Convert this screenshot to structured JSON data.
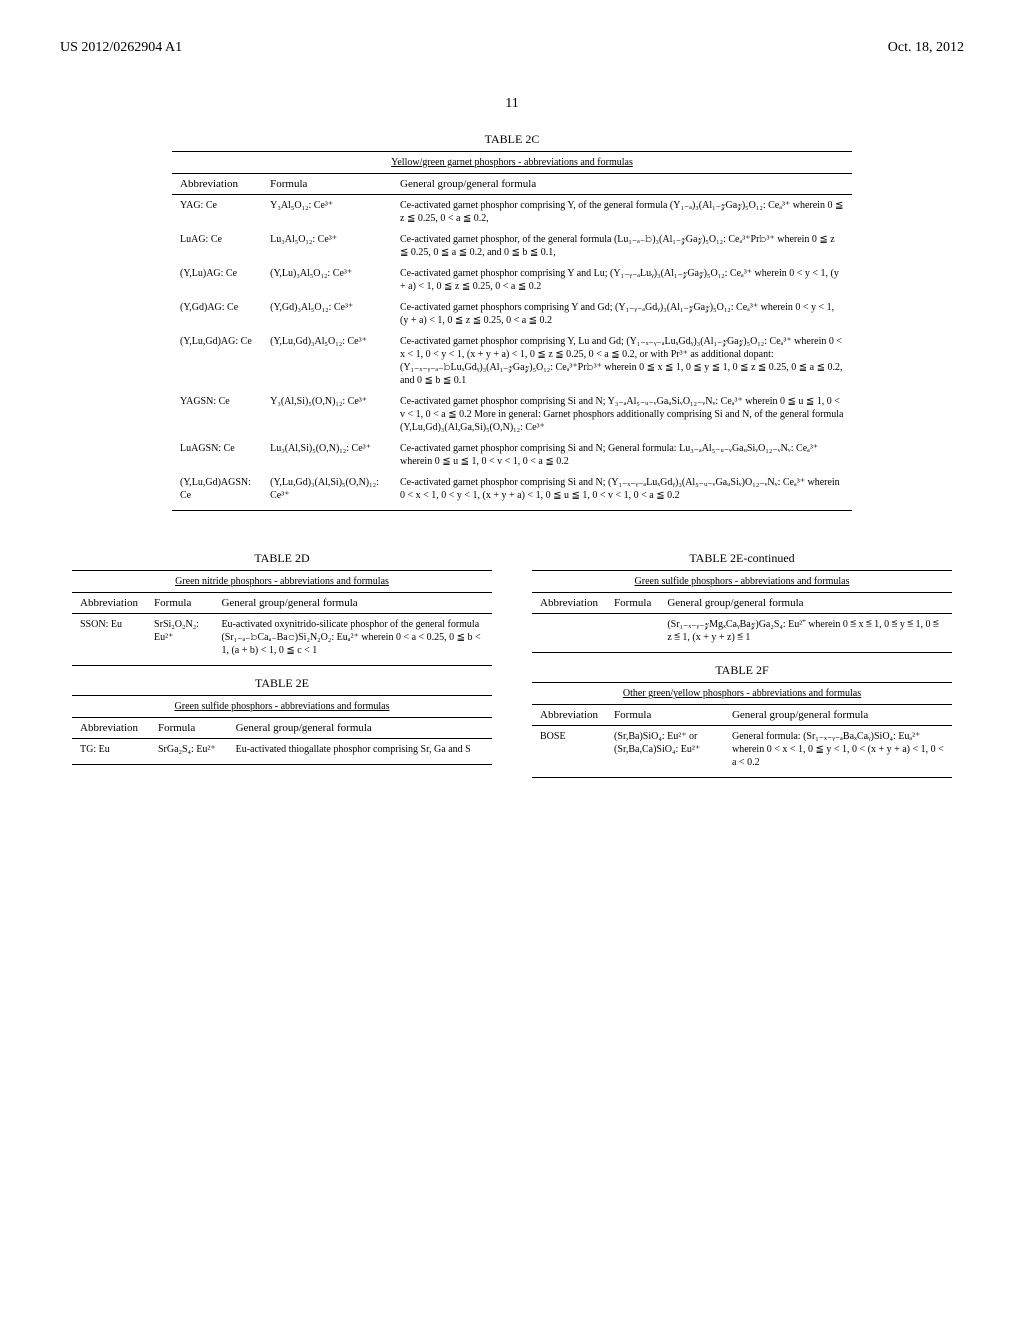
{
  "header": {
    "left": "US 2012/0262904 A1",
    "right": "Oct. 18, 2012"
  },
  "page_number": "11",
  "table2c": {
    "title": "TABLE 2C",
    "subtitle": "Yellow/green garnet phosphors - abbreviations and formulas",
    "cols": [
      "Abbreviation",
      "Formula",
      "General group/general formula"
    ],
    "rows": [
      {
        "abbr": "YAG: Ce",
        "formula": "Y₃Al₅O₁₂: Ce³⁺",
        "desc": "Ce-activated garnet phosphor comprising Y, of the general formula (Y₁₋ₐ)₃(Al₁₋𝓏Ga𝓏)₅O₁₂: Ceₐ³⁺ wherein 0 ≦ z ≦ 0.25, 0 < a ≦ 0.2,"
      },
      {
        "abbr": "LuAG: Ce",
        "formula": "Lu₃Al₅O₁₂: Ce³⁺",
        "desc": "Ce-activated garnet phosphor, of the general formula (Lu₁₋ₐ₋𝚋)₃(Al₁₋𝓏Ga𝓏)₅O₁₂: Ceₐ³⁺Pr𝚋³⁺ wherein 0 ≦ z ≦ 0.25, 0 ≦ a ≦ 0.2, and 0 ≦ b ≦ 0.1,"
      },
      {
        "abbr": "(Y,Lu)AG: Ce",
        "formula": "(Y,Lu)₃Al₅O₁₂: Ce³⁺",
        "desc": "Ce-activated garnet phosphor comprising Y and Lu; (Y₁₋ᵧ₋ₐLuᵧ)₃(Al₁₋𝓏Ga𝓏)₅O₁₂: Ceₐ³⁺ wherein 0 < y < 1, (y + a) < 1, 0 ≦ z ≦ 0.25, 0 < a ≦ 0.2"
      },
      {
        "abbr": "(Y,Gd)AG: Ce",
        "formula": "(Y,Gd)₃Al₅O₁₂: Ce³⁺",
        "desc": "Ce-activated garnet phosphors comprising Y and Gd; (Y₁₋ᵧ₋ₐGdᵧ)₃(Al₁₋𝓏Ga𝓏)₅O₁₂: Ceₐ³⁺ wherein 0 < y < 1, (y + a) < 1, 0 ≦ z ≦ 0.25, 0 < a ≦ 0.2"
      },
      {
        "abbr": "(Y,Lu,Gd)AG: Ce",
        "formula": "(Y,Lu,Gd)₃Al₅O₁₂: Ce³⁺",
        "desc": "Ce-activated garnet phosphor comprising Y, Lu and Gd; (Y₁₋ₓ₋ᵧ₋ₐLuₓGdᵧ)₃(Al₁₋𝓏Ga𝓏)₅O₁₂: Ceₐ³⁺ wherein 0 < x < 1, 0 < y < 1, (x + y + a) < 1, 0 ≦ z ≦ 0.25, 0 < a ≦ 0.2, or with Pr³⁺ as additional dopant: (Y₁₋ₓ₋ᵧ₋ₐ₋𝚋LuₓGdᵧ)₃(Al₁₋𝓏Ga𝓏)₅O₁₂: Ceₐ³⁺Pr𝚋³⁺ wherein 0 ≦ x ≦ 1, 0 ≦ y ≦ 1, 0 ≦ z ≦ 0.25, 0 ≦ a ≦ 0.2, and 0 ≦ b ≦ 0.1"
      },
      {
        "abbr": "YAGSN: Ce",
        "formula": "Y₃(Al,Si)₅(O,N)₁₂: Ce³⁺",
        "desc": "Ce-activated garnet phosphor comprising Si and N; Y₃₋ₐAl₅₋ᵤ₋ᵥGaᵤSiᵥO₁₂₋ᵥNᵥ: Ceₐ³⁺ wherein 0 ≦ u ≦ 1, 0 < v < 1, 0 < a ≦ 0.2 More in general: Garnet phosphors additionally comprising Si and N, of the general formula (Y,Lu,Gd)₃(Al,Ga,Si)₅(O,N)₁₂: Ce³⁺"
      },
      {
        "abbr": "LuAGSN: Ce",
        "formula": "Lu₃(Al,Si)₅(O,N)₁₂: Ce³⁺",
        "desc": "Ce-activated garnet phosphor comprising Si and N; General formula: Lu₃₋ₐAl₅₋ᵤ₋ᵥGaᵤSiᵥO₁₂₋ᵥNᵥ: Ceₐ³⁺ wherein 0 ≦ u ≦ 1, 0 < v < 1, 0 < a ≦ 0.2"
      },
      {
        "abbr": "(Y,Lu,Gd)AGSN: Ce",
        "formula": "(Y,Lu,Gd)₃(Al,Si)₅(O,N)₁₂: Ce³⁺",
        "desc": "Ce-activated garnet phosphor comprising Si and N; (Y₁₋ₓ₋ᵧ₋ₐLuₓGdᵧ)₃(Al₅₋ᵤ₋ᵥGaᵤSiᵥ)O₁₂₋ᵥNᵥ: Ceₐ³⁺ wherein 0 < x < 1, 0 < y < 1, (x + y + a) < 1, 0 ≦ u ≦ 1, 0 < v < 1, 0 < a ≦ 0.2"
      }
    ]
  },
  "table2d": {
    "title": "TABLE 2D",
    "subtitle": "Green nitride phosphors - abbreviations and formulas",
    "cols": [
      "Abbreviation",
      "Formula",
      "General group/general formula"
    ],
    "rows": [
      {
        "abbr": "SSON: Eu",
        "formula": "SrSi₂O₂N₂: Eu²⁺",
        "desc": "Eu-activated oxynitrido-silicate phosphor of the general formula (Sr₁₋ₐ₋𝚋Caₐ₋Ba𝚌)Si₂N₂O₂: Euₐ²⁺ wherein 0 < a < 0.25, 0 ≦ b < 1, (a + b) < 1, 0 ≦ c < 1"
      }
    ]
  },
  "table2e": {
    "title": "TABLE 2E",
    "subtitle": "Green sulfide phosphors - abbreviations and formulas",
    "cols": [
      "Abbreviation",
      "Formula",
      "General group/general formula"
    ],
    "rows": [
      {
        "abbr": "TG: Eu",
        "formula": "SrGa₂S₄: Eu²⁺",
        "desc": "Eu-activated thiogallate phosphor comprising Sr, Ga and S"
      }
    ]
  },
  "table2e_cont": {
    "title": "TABLE 2E-continued",
    "subtitle": "Green sulfide phosphors - abbreviations and formulas",
    "cols": [
      "Abbreviation",
      "Formula",
      "General group/general formula"
    ],
    "rows": [
      {
        "abbr": "",
        "formula": "",
        "desc": "(Sr₁₋ₓ₋ᵧ₋𝓏MgₓCaᵧBa𝓏)Ga₂S₄: Eu²⁺ wherein 0 ≦ x ≦ 1, 0 ≦ y ≦ 1, 0 ≦ z ≦ 1, (x + y + z) ≦ 1"
      }
    ]
  },
  "table2f": {
    "title": "TABLE 2F",
    "subtitle": "Other green/yellow phosphors - abbreviations and formulas",
    "cols": [
      "Abbreviation",
      "Formula",
      "General group/general formula"
    ],
    "rows": [
      {
        "abbr": "BOSE",
        "formula": "(Sr,Ba)SiO₄: Eu²⁺ or (Sr,Ba,Ca)SiO₄: Eu²⁺",
        "desc": "General formula: (Sr₁₋ₓ₋ᵧ₋ₐBaₓCaᵧ)SiO₄: Euₐ²⁺ wherein 0 < x < 1, 0 ≦ y < 1, 0 < (x + y + a) < 1, 0 < a < 0.2"
      }
    ]
  }
}
